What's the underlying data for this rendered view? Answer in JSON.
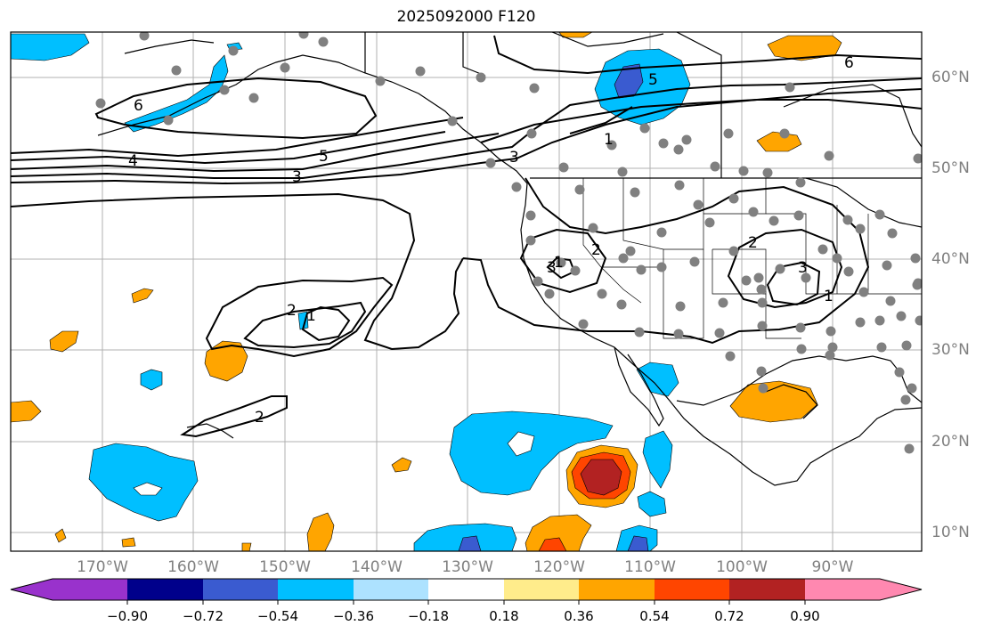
{
  "title": "2025092000 F120",
  "lon_labels": [
    "170°W",
    "160°W",
    "150°W",
    "140°W",
    "130°W",
    "120°W",
    "110°W",
    "100°W",
    "90°W"
  ],
  "lat_labels": [
    "60°N",
    "50°N",
    "40°N",
    "30°N",
    "20°N",
    "10°N"
  ],
  "contour_labels": [
    "6",
    "5",
    "4",
    "3",
    "2",
    "1",
    "2",
    "3",
    "1",
    "5",
    "6",
    "2",
    "3",
    "1",
    "2",
    "3",
    "1"
  ],
  "colorbar": {
    "tick_labels": [
      "−0.90",
      "−0.72",
      "−0.54",
      "−0.36",
      "−0.18",
      "0.18",
      "0.36",
      "0.54",
      "0.72",
      "0.90"
    ],
    "colors": [
      "#9932cc",
      "#00008b",
      "#3a5bd0",
      "#00bfff",
      "#ade2ff",
      "#ffffff",
      "#ffec8b",
      "#ffa500",
      "#ff4500",
      "#b22222",
      "#ff88b0"
    ]
  },
  "colors": {
    "frame": "#000000",
    "grid": "#b0b0b0",
    "station": "#808080",
    "axis_label": "#808080"
  }
}
